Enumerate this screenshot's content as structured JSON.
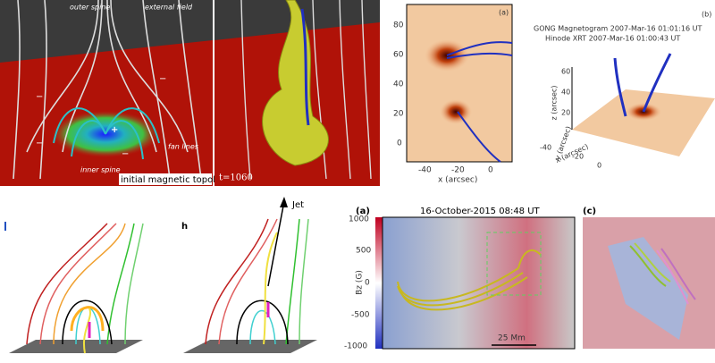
{
  "panels": {
    "topology": {
      "labels": {
        "outer_spine": "outer spine",
        "external_field": "external field",
        "fan_lines": "fan lines",
        "inner_spine": "inner spine"
      },
      "signs": [
        "−",
        "−",
        "−",
        "+",
        "−"
      ],
      "caption": "initial magnetic topology"
    },
    "simulation": {
      "time": "t=1060"
    },
    "map_a": {
      "tag": "(a)",
      "yticks": [
        80,
        60,
        40,
        20,
        0
      ],
      "xticks": [
        -40,
        -20,
        0
      ],
      "xlabel": "x (arcsec)"
    },
    "map_b": {
      "tag": "(b)",
      "lines": [
        "GONG Magnetogram 2007-Mar-16 01:01:16 UT",
        "Hinode XRT 2007-Mar-16 01:00:43 UT"
      ],
      "zlabel": "z (arcsec)",
      "ylabel": "y (arcsec)",
      "xlabel": "x (arcsec)",
      "zticks": [
        60,
        40,
        20
      ],
      "xticks": [
        -40,
        -20,
        0
      ]
    },
    "diagram_h": {
      "tag": "h",
      "arrow": "Jet"
    },
    "magnetogram": {
      "tag": "(a)",
      "title": "16-October-2015  08:48 UT",
      "ylabel": "Bz (G)",
      "yticks": [
        1000,
        500,
        0,
        -500,
        -1000
      ],
      "scale": "25 Mm"
    },
    "zoom": {
      "tag": "(c)"
    }
  }
}
